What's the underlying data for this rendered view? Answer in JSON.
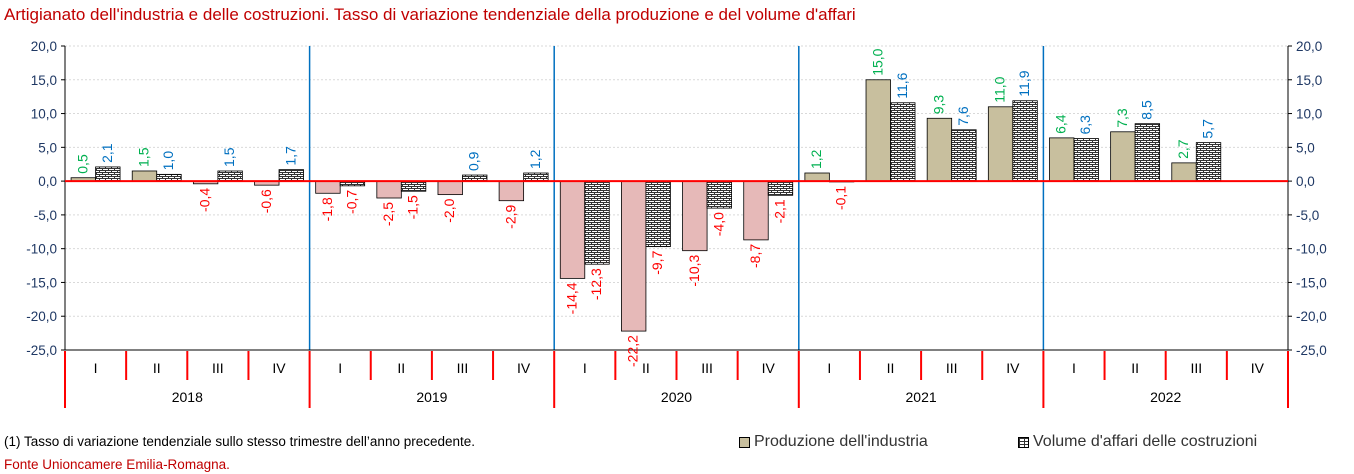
{
  "title": "Artigianato dell'industria e delle costruzioni. Tasso di variazione tendenziale della produzione e del volume d'affari",
  "footnote": "(1) Tasso di variazione tendenziale sullo stesso trimestre dell’anno precedente.",
  "source": "Fonte Unioncamere Emilia-Romagna.",
  "legend": {
    "series1": "Produzione dell'industria",
    "series2": "Volume d'affari delle costruzioni"
  },
  "colors": {
    "title": "#c00000",
    "production_fill": "#c8bf9e",
    "production_negative_fill": "#e6b9b8",
    "positive_label_production": "#00b050",
    "positive_label_volume": "#0070c0",
    "negative_label": "#ff0000",
    "axis_values": "#1f3864",
    "zero_line": "#ff0000",
    "year_separator": "#0070c0"
  },
  "chart_data": {
    "type": "bar",
    "title": "Artigianato dell'industria e delle costruzioni. Tasso di variazione tendenziale della produzione e del volume d'affari",
    "years": [
      "2018",
      "2019",
      "2020",
      "2021",
      "2022"
    ],
    "quarters": [
      "I",
      "II",
      "III",
      "IV"
    ],
    "categories": [
      "I 2018",
      "II 2018",
      "III 2018",
      "IV 2018",
      "I 2019",
      "II 2019",
      "III 2019",
      "IV 2019",
      "I 2020",
      "II 2020",
      "III 2020",
      "IV 2020",
      "I 2021",
      "II 2021",
      "III 2021",
      "IV 2021",
      "I 2022",
      "II 2022",
      "III 2022",
      "IV 2022"
    ],
    "series": [
      {
        "name": "Produzione dell'industria",
        "values": [
          0.5,
          1.5,
          -0.4,
          -0.6,
          -1.8,
          -2.5,
          -2.0,
          -2.9,
          -14.4,
          -22.2,
          -10.3,
          -8.7,
          1.2,
          15.0,
          9.3,
          11.0,
          6.4,
          7.3,
          2.7,
          null
        ],
        "labels": [
          "0,5",
          "1,5",
          "-0,4",
          "-0,6",
          "-1,8",
          "-2,5",
          "-2,0",
          "-2,9",
          "-14,4",
          "-22,2",
          "-10,3",
          "-8,7",
          "1,2",
          "15,0",
          "9,3",
          "11,0",
          "6,4",
          "7,3",
          "2,7",
          ""
        ]
      },
      {
        "name": "Volume d'affari delle costruzioni",
        "values": [
          2.1,
          1.0,
          1.5,
          1.7,
          -0.7,
          -1.5,
          0.9,
          1.2,
          -12.3,
          -9.7,
          -4.0,
          -2.1,
          -0.1,
          11.6,
          7.6,
          11.9,
          6.3,
          8.5,
          5.7,
          null
        ],
        "labels": [
          "2,1",
          "1,0",
          "1,5",
          "1,7",
          "-0,7",
          "-1,5",
          "0,9",
          "1,2",
          "-12,3",
          "-9,7",
          "-4,0",
          "-2,1",
          "-0,1",
          "11,6",
          "7,6",
          "11,9",
          "6,3",
          "8,5",
          "5,7",
          ""
        ]
      }
    ],
    "ylim": [
      -25,
      20
    ],
    "yticks": [
      "-25,0",
      "-20,0",
      "-15,0",
      "-10,0",
      "-5,0",
      "0,0",
      "5,0",
      "10,0",
      "15,0",
      "20,0"
    ],
    "grid": true,
    "legend_position": "bottom-right"
  }
}
